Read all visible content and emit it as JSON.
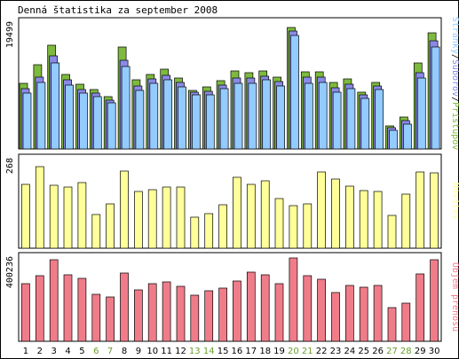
{
  "title": "Denná štatistika za september 2008",
  "colors": {
    "background": "#ffffff",
    "border": "#000000",
    "pages": "#7dba3e",
    "files": "#8a8ae6",
    "hits": "#93cbff",
    "visits": "#ffff99",
    "traffic": "#f07c8a",
    "day_weekday": "#000000",
    "day_weekend": "#6a9e2c"
  },
  "chart_data": [
    {
      "type": "bar",
      "title": "Denná štatistika za september 2008",
      "panel": "requests",
      "categories": [
        "1",
        "2",
        "3",
        "4",
        "5",
        "6",
        "7",
        "8",
        "9",
        "10",
        "11",
        "12",
        "13",
        "14",
        "15",
        "16",
        "17",
        "18",
        "19",
        "20",
        "21",
        "22",
        "23",
        "24",
        "25",
        "26",
        "27",
        "28",
        "29",
        "30"
      ],
      "ymax_label": "19499",
      "ylim": [
        0,
        19499
      ],
      "legend_label": {
        "parts": [
          {
            "text": "Stránky",
            "color": "#93cbff"
          },
          {
            "text": "/",
            "color": "#000000"
          },
          {
            "text": "Súborov",
            "color": "#8a8ae6"
          },
          {
            "text": "/",
            "color": "#000000"
          },
          {
            "text": "Prístupov",
            "color": "#7dba3e"
          }
        ]
      },
      "series": [
        {
          "name": "Prístupov",
          "color": "#7dba3e",
          "values": [
            10200,
            13050,
            16100,
            11550,
            10000,
            9250,
            8050,
            15850,
            10700,
            11550,
            12400,
            10950,
            9050,
            9550,
            10600,
            12150,
            11800,
            12150,
            11150,
            18800,
            11950,
            11950,
            10250,
            10900,
            8800,
            10350,
            3550,
            4950,
            13350,
            18000
          ]
        },
        {
          "name": "Súborov",
          "color": "#8a8ae6",
          "values": [
            9350,
            11150,
            14450,
            10650,
            9250,
            8650,
            7600,
            13800,
            9750,
            10850,
            11450,
            10250,
            8850,
            8950,
            9950,
            11050,
            10950,
            11300,
            10500,
            18200,
            11100,
            11150,
            9450,
            10050,
            8350,
            9700,
            3300,
            4400,
            11800,
            16700
          ]
        },
        {
          "name": "Stránky",
          "color": "#93cbff",
          "values": [
            8700,
            10300,
            13350,
            9900,
            8600,
            8150,
            7150,
            12800,
            9050,
            10100,
            10650,
            9550,
            8400,
            8350,
            9400,
            10150,
            10150,
            10650,
            9800,
            17550,
            10150,
            10350,
            8850,
            9400,
            7850,
            9150,
            2950,
            3850,
            11000,
            15850
          ]
        }
      ]
    },
    {
      "type": "bar",
      "panel": "visits",
      "categories": [
        "1",
        "2",
        "3",
        "4",
        "5",
        "6",
        "7",
        "8",
        "9",
        "10",
        "11",
        "12",
        "13",
        "14",
        "15",
        "16",
        "17",
        "18",
        "19",
        "20",
        "21",
        "22",
        "23",
        "24",
        "25",
        "26",
        "27",
        "28",
        "29",
        "30"
      ],
      "ymax_label": "268",
      "ylim": [
        0,
        268
      ],
      "legend_label": {
        "parts": [
          {
            "text": "Návštev",
            "color": "#ffff99"
          }
        ]
      },
      "series": [
        {
          "name": "Návštev",
          "color": "#ffff99",
          "values": [
            194,
            246,
            191,
            186,
            197,
            103,
            134,
            232,
            172,
            176,
            186,
            186,
            94,
            104,
            131,
            214,
            194,
            205,
            150,
            129,
            134,
            230,
            208,
            187,
            174,
            172,
            99,
            163,
            230,
            228
          ]
        }
      ]
    },
    {
      "type": "bar",
      "panel": "traffic",
      "categories": [
        "1",
        "2",
        "3",
        "4",
        "5",
        "6",
        "7",
        "8",
        "9",
        "10",
        "11",
        "12",
        "13",
        "14",
        "15",
        "16",
        "17",
        "18",
        "19",
        "20",
        "21",
        "22",
        "23",
        "24",
        "25",
        "26",
        "27",
        "28",
        "29",
        "30"
      ],
      "ymax_label": "400236",
      "ylim": [
        0,
        400236
      ],
      "legend_label": {
        "parts": [
          {
            "text": "Objem prenosu",
            "color": "#f07c8a"
          }
        ]
      },
      "series": [
        {
          "name": "Objem prenosu",
          "color": "#f07c8a",
          "values": [
            275000,
            313000,
            393000,
            320000,
            302000,
            225000,
            214000,
            328000,
            248000,
            275000,
            286000,
            262000,
            220000,
            241000,
            255000,
            290000,
            332000,
            318000,
            276000,
            400236,
            314000,
            298000,
            236000,
            267000,
            260000,
            268000,
            161000,
            184000,
            325000,
            393000
          ]
        }
      ]
    }
  ],
  "weekend_days": [
    "6",
    "7",
    "13",
    "14",
    "20",
    "21",
    "27",
    "28"
  ]
}
